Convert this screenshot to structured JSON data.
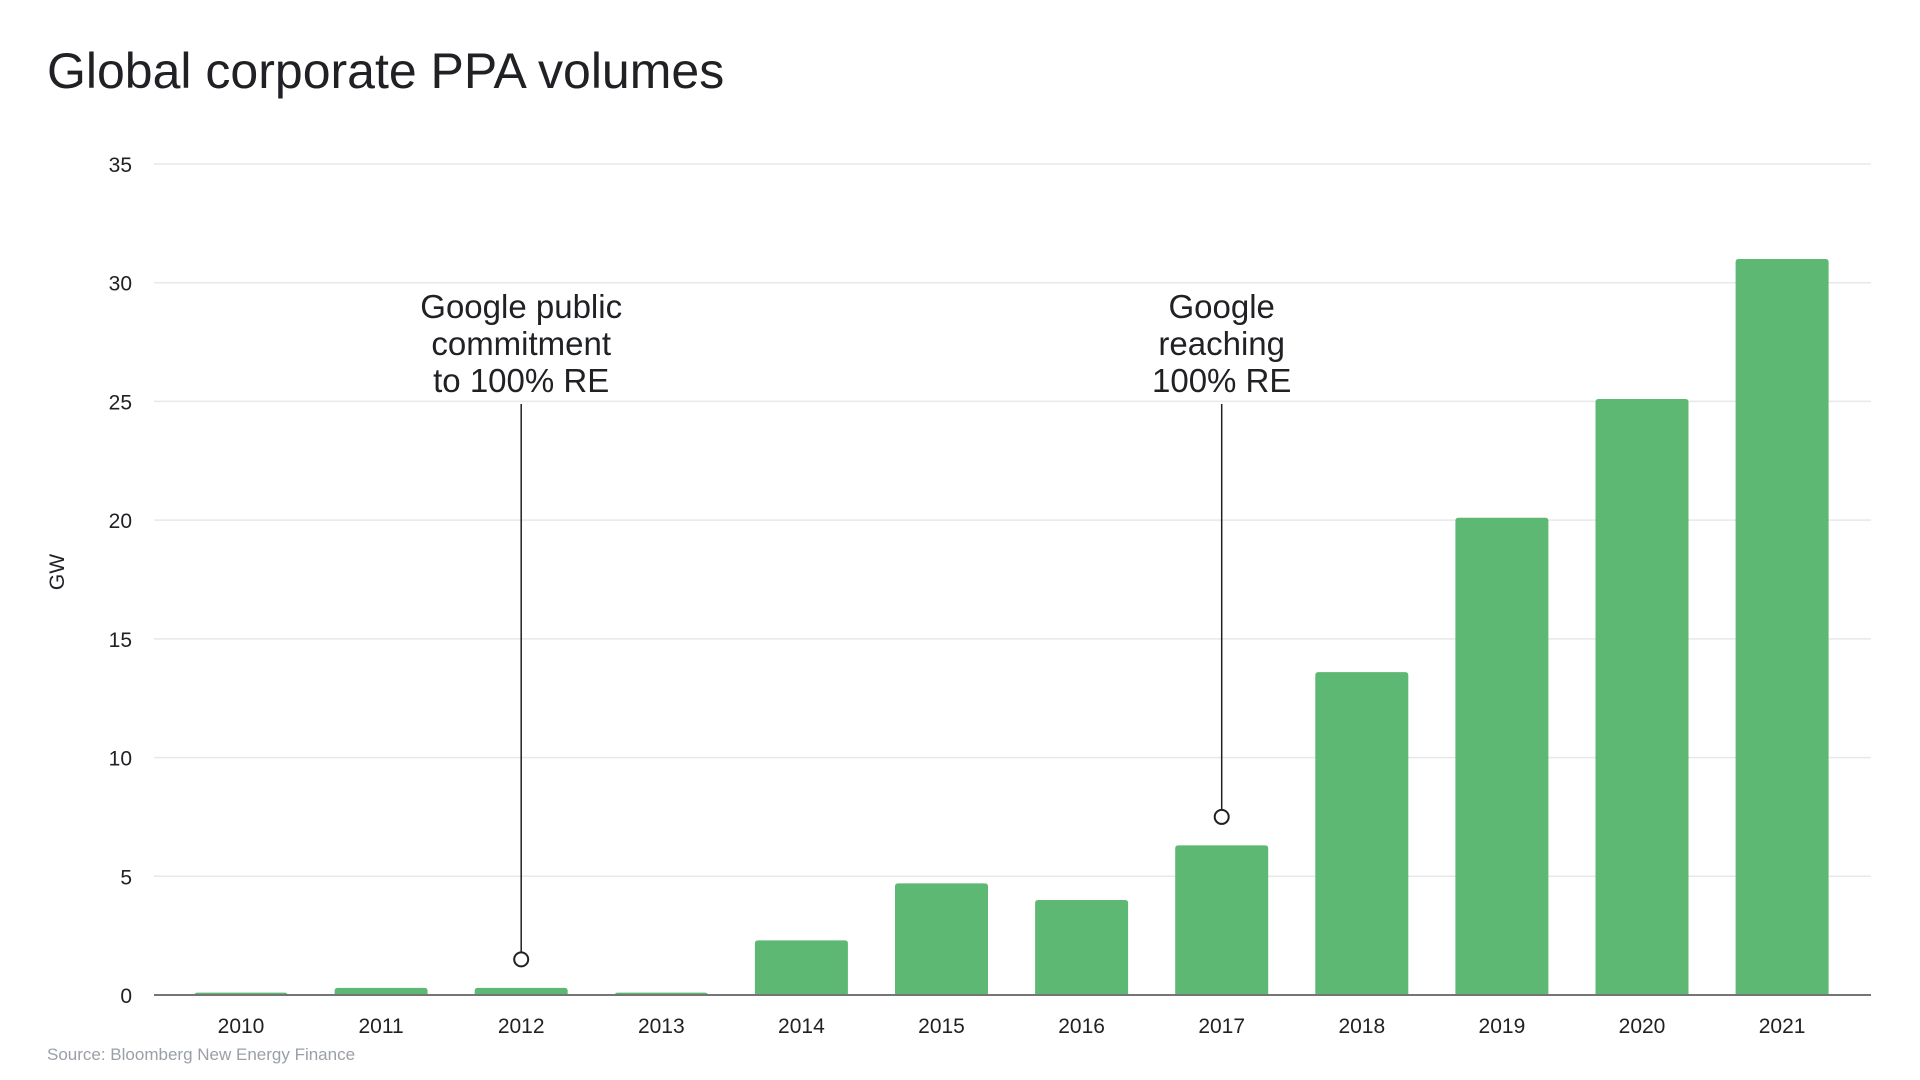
{
  "chart_data": {
    "type": "bar",
    "title": "Global corporate PPA volumes",
    "xlabel": "",
    "ylabel": "GW",
    "ylim": [
      0,
      35
    ],
    "yticks": [
      0,
      5,
      10,
      15,
      20,
      25,
      30,
      35
    ],
    "grid": true,
    "categories": [
      "2010",
      "2011",
      "2012",
      "2013",
      "2014",
      "2015",
      "2016",
      "2017",
      "2018",
      "2019",
      "2020",
      "2021"
    ],
    "values": [
      0.1,
      0.3,
      0.3,
      0.1,
      2.3,
      4.7,
      4.0,
      6.3,
      13.6,
      20.1,
      25.1,
      31.0
    ],
    "bar_color": "#5cb873",
    "annotations": [
      {
        "category": "2012",
        "lines": [
          "Google public",
          "commitment",
          "to 100% RE"
        ],
        "marker_value": 1.5
      },
      {
        "category": "2017",
        "lines": [
          "Google",
          "reaching",
          "100% RE"
        ],
        "marker_value": 7.5
      }
    ],
    "source": "Source: Bloomberg New Energy Finance"
  }
}
